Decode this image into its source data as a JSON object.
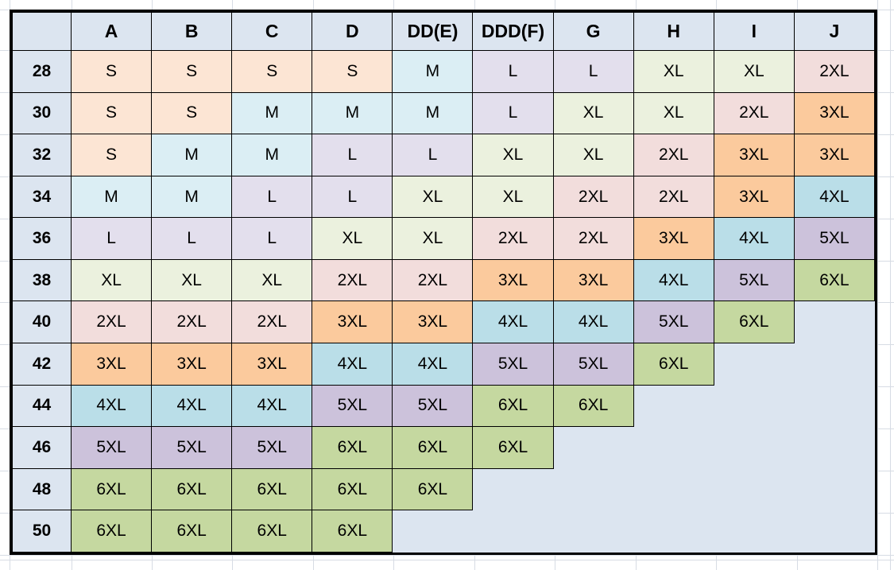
{
  "table": {
    "corner_label": "",
    "column_headers": [
      "A",
      "B",
      "C",
      "D",
      "DD(E)",
      "DDD(F)",
      "G",
      "H",
      "I",
      "J"
    ],
    "rows": [
      {
        "band": "28",
        "sizes": [
          "S",
          "S",
          "S",
          "S",
          "M",
          "L",
          "L",
          "XL",
          "XL",
          "2XL"
        ]
      },
      {
        "band": "30",
        "sizes": [
          "S",
          "S",
          "M",
          "M",
          "M",
          "L",
          "XL",
          "XL",
          "2XL",
          "3XL"
        ]
      },
      {
        "band": "32",
        "sizes": [
          "S",
          "M",
          "M",
          "L",
          "L",
          "XL",
          "XL",
          "2XL",
          "3XL",
          "3XL"
        ]
      },
      {
        "band": "34",
        "sizes": [
          "M",
          "M",
          "L",
          "L",
          "XL",
          "XL",
          "2XL",
          "2XL",
          "3XL",
          "4XL"
        ]
      },
      {
        "band": "36",
        "sizes": [
          "L",
          "L",
          "L",
          "XL",
          "XL",
          "2XL",
          "2XL",
          "3XL",
          "4XL",
          "5XL"
        ]
      },
      {
        "band": "38",
        "sizes": [
          "XL",
          "XL",
          "XL",
          "2XL",
          "2XL",
          "3XL",
          "3XL",
          "4XL",
          "5XL",
          "6XL"
        ]
      },
      {
        "band": "40",
        "sizes": [
          "2XL",
          "2XL",
          "2XL",
          "3XL",
          "3XL",
          "4XL",
          "4XL",
          "5XL",
          "6XL",
          ""
        ]
      },
      {
        "band": "42",
        "sizes": [
          "3XL",
          "3XL",
          "3XL",
          "4XL",
          "4XL",
          "5XL",
          "5XL",
          "6XL",
          "",
          ""
        ]
      },
      {
        "band": "44",
        "sizes": [
          "4XL",
          "4XL",
          "4XL",
          "5XL",
          "5XL",
          "6XL",
          "6XL",
          "",
          "",
          ""
        ]
      },
      {
        "band": "46",
        "sizes": [
          "5XL",
          "5XL",
          "5XL",
          "6XL",
          "6XL",
          "6XL",
          "",
          "",
          "",
          ""
        ]
      },
      {
        "band": "48",
        "sizes": [
          "6XL",
          "6XL",
          "6XL",
          "6XL",
          "6XL",
          "",
          "",
          "",
          "",
          ""
        ]
      },
      {
        "band": "50",
        "sizes": [
          "6XL",
          "6XL",
          "6XL",
          "6XL",
          "",
          "",
          "",
          "",
          "",
          ""
        ]
      }
    ],
    "size_colors": {
      "S": "#FCE5D4",
      "M": "#DBEEF4",
      "L": "#E3DFED",
      "XL": "#EBF1DE",
      "2XL": "#F2DDDC",
      "3XL": "#FBCA9D",
      "4XL": "#BADEE8",
      "5XL": "#CCC2DB",
      "6XL": "#C5D8A0"
    },
    "header_fill": "#DCE5F0",
    "empty_fill": "#DCE5F0",
    "border_color": "#000000",
    "gridline_color": "#D7DCE4"
  }
}
